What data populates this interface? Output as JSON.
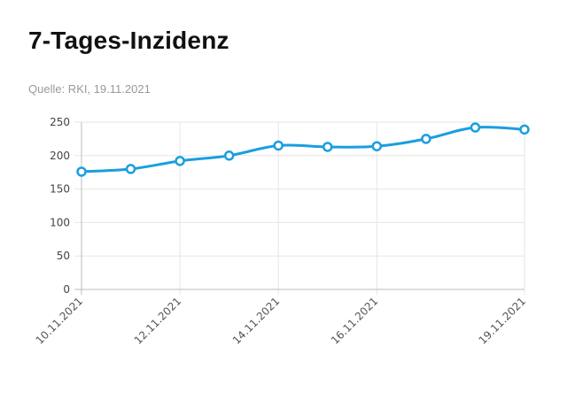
{
  "header": {
    "title": "7-Tages-Inzidenz",
    "source": "Quelle: RKI, 19.11.2021"
  },
  "chart_data": {
    "type": "line",
    "title": "7-Tages-Inzidenz",
    "xlabel": "",
    "ylabel": "",
    "x": [
      "10.11.2021",
      "11.11.2021",
      "12.11.2021",
      "13.11.2021",
      "14.11.2021",
      "15.11.2021",
      "16.11.2021",
      "17.11.2021",
      "18.11.2021",
      "19.11.2021"
    ],
    "x_tick_labels": [
      "10.11.2021",
      "12.11.2021",
      "14.11.2021",
      "16.11.2021",
      "19.11.2021"
    ],
    "series": [
      {
        "values": [
          176,
          180,
          192,
          200,
          215,
          213,
          214,
          225,
          242,
          239
        ]
      }
    ],
    "ylim": [
      0,
      250
    ],
    "y_ticks": [
      0,
      50,
      100,
      150,
      200,
      250
    ],
    "grid": true,
    "legend": "none",
    "colors": {
      "line": "#1a9ee0",
      "grid": "#e6e6e6",
      "axis": "#bbbbbb"
    }
  }
}
